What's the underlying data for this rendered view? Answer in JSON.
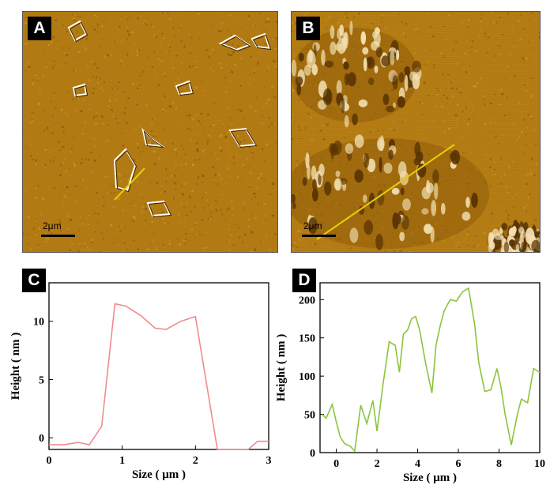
{
  "panels": {
    "a": {
      "label": "A",
      "scale": "2μm"
    },
    "b": {
      "label": "B",
      "scale": "2μm"
    },
    "c": {
      "label": "C"
    },
    "d": {
      "label": "D"
    }
  },
  "colors": {
    "afm_base": "#b27a12",
    "profile_line": "#e8d000",
    "series_c": "#f08c8c",
    "series_d": "#8cc43c"
  },
  "chart_data": [
    {
      "type": "line",
      "xlabel": "Size ( μm )",
      "ylabel": "Height ( nm )",
      "xlim": [
        0,
        3
      ],
      "ylim": [
        -1,
        13.3
      ],
      "xticks": [
        0,
        1,
        2,
        3
      ],
      "yticks": [
        0,
        5,
        10
      ],
      "series": [
        {
          "x": [
            0,
            0.2,
            0.4,
            0.55,
            0.72,
            0.9,
            1.05,
            1.25,
            1.45,
            1.6,
            1.8,
            2.0,
            2.3,
            2.72,
            2.85,
            3.0
          ],
          "y": [
            -0.6,
            -0.6,
            -0.4,
            -0.6,
            1.0,
            11.5,
            11.3,
            10.5,
            9.4,
            9.3,
            10.0,
            10.4,
            -1.0,
            -1.0,
            -0.3,
            -0.3
          ]
        }
      ]
    },
    {
      "type": "line",
      "xlabel": "Size ( μm )",
      "ylabel": "Height ( nm )",
      "xlim": [
        -0.8,
        10
      ],
      "ylim": [
        0,
        222
      ],
      "xticks": [
        0,
        2,
        4,
        6,
        8,
        10
      ],
      "yticks": [
        0,
        50,
        100,
        150,
        200
      ],
      "series": [
        {
          "x": [
            -0.7,
            -0.5,
            -0.2,
            0.0,
            0.2,
            0.4,
            0.7,
            0.9,
            1.2,
            1.5,
            1.8,
            2.0,
            2.3,
            2.6,
            2.9,
            3.1,
            3.3,
            3.5,
            3.7,
            3.9,
            4.1,
            4.4,
            4.7,
            4.9,
            5.1,
            5.3,
            5.6,
            5.9,
            6.2,
            6.5,
            6.8,
            7.0,
            7.3,
            7.6,
            7.9,
            8.1,
            8.3,
            8.6,
            8.9,
            9.1,
            9.4,
            9.7,
            10.0
          ],
          "y": [
            50,
            45,
            63,
            40,
            20,
            12,
            8,
            2,
            62,
            38,
            68,
            28,
            90,
            145,
            140,
            105,
            155,
            160,
            175,
            178,
            160,
            115,
            78,
            140,
            165,
            185,
            200,
            198,
            210,
            215,
            168,
            118,
            80,
            82,
            110,
            85,
            50,
            10,
            50,
            70,
            65,
            110,
            105
          ]
        }
      ]
    }
  ]
}
